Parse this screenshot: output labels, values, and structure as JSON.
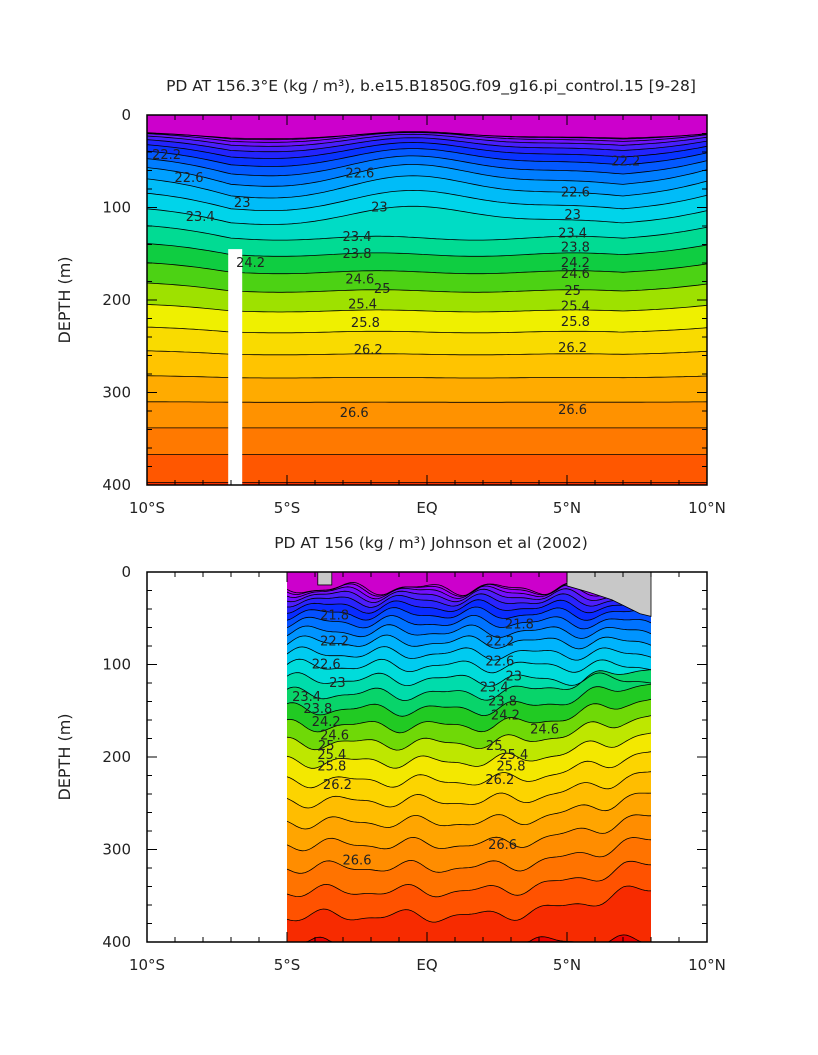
{
  "chart_data": [
    {
      "type": "contour",
      "title": "PD AT 156.3°E (kg / m³), b.e15.B1850G.f09_g16.pi_control.15 [9-28]",
      "xlabel": "",
      "ylabel": "DEPTH (m)",
      "xlim": [
        -10,
        10
      ],
      "ylim": [
        400,
        0
      ],
      "xticks": [
        -10,
        -5,
        0,
        5,
        10
      ],
      "xtick_labels": [
        "10°S",
        "5°S",
        "EQ",
        "5°N",
        "10°N"
      ],
      "yticks": [
        0,
        100,
        200,
        300,
        400
      ],
      "ytick_labels": [
        "0",
        "100",
        "200",
        "300",
        "400"
      ],
      "contour_interval": 0.2,
      "levels": [
        21.6,
        21.8,
        22.0,
        22.2,
        22.4,
        22.6,
        22.8,
        23.0,
        23.2,
        23.4,
        23.6,
        23.8,
        24.0,
        24.2,
        24.4,
        24.6,
        24.8,
        25.0,
        25.2,
        25.4,
        25.6,
        25.8,
        26.0,
        26.2,
        26.4,
        26.6,
        26.8
      ],
      "data_extent": [
        -10,
        10
      ],
      "missing_band": [
        -7.1,
        -6.6
      ],
      "missing_top": 145,
      "contour_labels": [
        {
          "text": "22.2",
          "x": -9.3,
          "y": 43
        },
        {
          "text": "22.6",
          "x": -8.5,
          "y": 68
        },
        {
          "text": "23",
          "x": -6.6,
          "y": 95
        },
        {
          "text": "23.4",
          "x": -8.1,
          "y": 110
        },
        {
          "text": "22.6",
          "x": -2.4,
          "y": 63
        },
        {
          "text": "23",
          "x": -1.7,
          "y": 100
        },
        {
          "text": "23.4",
          "x": -2.5,
          "y": 132
        },
        {
          "text": "23.8",
          "x": -2.5,
          "y": 150
        },
        {
          "text": "24.2",
          "x": -6.3,
          "y": 160
        },
        {
          "text": "24.6",
          "x": -2.4,
          "y": 178
        },
        {
          "text": "25",
          "x": -1.6,
          "y": 188
        },
        {
          "text": "25.4",
          "x": -2.3,
          "y": 205
        },
        {
          "text": "25.8",
          "x": -2.2,
          "y": 225
        },
        {
          "text": "26.2",
          "x": -2.1,
          "y": 254
        },
        {
          "text": "26.6",
          "x": -2.6,
          "y": 322
        },
        {
          "text": "22.2",
          "x": 7.1,
          "y": 50
        },
        {
          "text": "22.6",
          "x": 5.3,
          "y": 84
        },
        {
          "text": "23",
          "x": 5.2,
          "y": 108
        },
        {
          "text": "23.4",
          "x": 5.2,
          "y": 128
        },
        {
          "text": "23.8",
          "x": 5.3,
          "y": 143
        },
        {
          "text": "24.2",
          "x": 5.3,
          "y": 160
        },
        {
          "text": "24.6",
          "x": 5.3,
          "y": 172
        },
        {
          "text": "25",
          "x": 5.2,
          "y": 190
        },
        {
          "text": "25.4",
          "x": 5.3,
          "y": 207
        },
        {
          "text": "25.8",
          "x": 5.3,
          "y": 224
        },
        {
          "text": "26.2",
          "x": 5.2,
          "y": 252
        },
        {
          "text": "26.6",
          "x": 5.2,
          "y": 319
        }
      ]
    },
    {
      "type": "contour",
      "title": "PD AT 156 (kg / m³) Johnson et al (2002)",
      "xlabel": "",
      "ylabel": "DEPTH (m)",
      "xlim": [
        -10,
        10
      ],
      "ylim": [
        400,
        0
      ],
      "xticks": [
        -10,
        -5,
        0,
        5,
        10
      ],
      "xtick_labels": [
        "10°S",
        "5°S",
        "EQ",
        "5°N",
        "10°N"
      ],
      "yticks": [
        0,
        100,
        200,
        300,
        400
      ],
      "ytick_labels": [
        "0",
        "100",
        "200",
        "300",
        "400"
      ],
      "contour_interval": 0.2,
      "levels": [
        21.4,
        21.6,
        21.8,
        22.0,
        22.2,
        22.4,
        22.6,
        22.8,
        23.0,
        23.2,
        23.4,
        23.6,
        23.8,
        24.0,
        24.2,
        24.4,
        24.6,
        24.8,
        25.0,
        25.2,
        25.4,
        25.6,
        25.8,
        26.0,
        26.2,
        26.4,
        26.6,
        26.8
      ],
      "data_extent": [
        -5,
        8
      ],
      "contour_labels": [
        {
          "text": "21.8",
          "x": -3.3,
          "y": 47
        },
        {
          "text": "22.2",
          "x": -3.3,
          "y": 75
        },
        {
          "text": "22.6",
          "x": -3.6,
          "y": 100
        },
        {
          "text": "23",
          "x": -3.2,
          "y": 120
        },
        {
          "text": "23.4",
          "x": -4.3,
          "y": 135
        },
        {
          "text": "23.8",
          "x": -3.9,
          "y": 148
        },
        {
          "text": "24.2",
          "x": -3.6,
          "y": 162
        },
        {
          "text": "24.6",
          "x": -3.3,
          "y": 177
        },
        {
          "text": "25",
          "x": -3.6,
          "y": 188
        },
        {
          "text": "25.4",
          "x": -3.4,
          "y": 198
        },
        {
          "text": "25.8",
          "x": -3.4,
          "y": 210
        },
        {
          "text": "26.2",
          "x": -3.2,
          "y": 230
        },
        {
          "text": "26.6",
          "x": -2.5,
          "y": 312
        },
        {
          "text": "21.8",
          "x": 3.3,
          "y": 57
        },
        {
          "text": "22.2",
          "x": 2.6,
          "y": 75
        },
        {
          "text": "22.6",
          "x": 2.6,
          "y": 97
        },
        {
          "text": "23",
          "x": 3.1,
          "y": 113
        },
        {
          "text": "23.4",
          "x": 2.4,
          "y": 125
        },
        {
          "text": "23.8",
          "x": 2.7,
          "y": 140
        },
        {
          "text": "24.2",
          "x": 2.8,
          "y": 155
        },
        {
          "text": "24.6",
          "x": 4.2,
          "y": 170
        },
        {
          "text": "25",
          "x": 2.4,
          "y": 188
        },
        {
          "text": "25.4",
          "x": 3.1,
          "y": 198
        },
        {
          "text": "25.8",
          "x": 3.0,
          "y": 210
        },
        {
          "text": "26.2",
          "x": 2.6,
          "y": 225
        },
        {
          "text": "26.6",
          "x": 2.7,
          "y": 295
        }
      ]
    }
  ]
}
